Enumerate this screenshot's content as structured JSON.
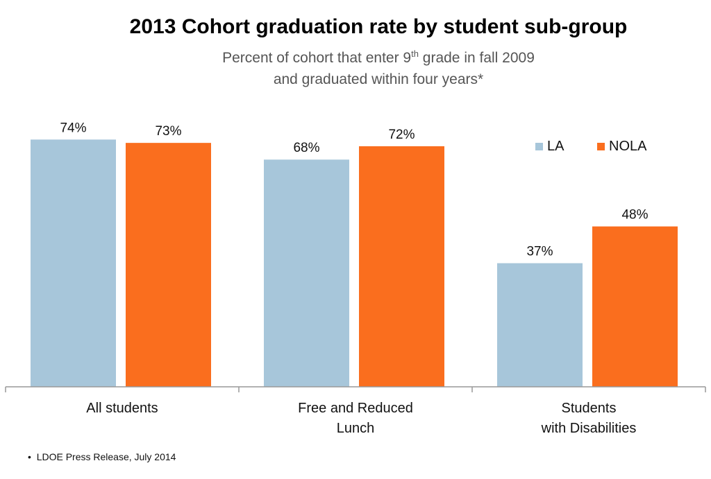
{
  "header": {
    "title": "2013 Cohort graduation rate by student sub-group",
    "subtitle_pre": "Percent of cohort that enter 9",
    "subtitle_sup": "th",
    "subtitle_post": " grade in fall 2009",
    "subtitle_line2": "and graduated within four years*"
  },
  "footnote": "LDOE Press Release, July 2014",
  "colors": {
    "LA": "#a7c6da",
    "NOLA": "#fa6e1e"
  },
  "chart_data": {
    "type": "bar",
    "title": "2013 Cohort graduation rate by student sub-group",
    "subtitle": "Percent of cohort that enter 9th grade in fall 2009 and graduated within four years*",
    "categories": [
      "All students",
      "Free and Reduced\nLunch",
      "Students\nwith Disabilities"
    ],
    "series": [
      {
        "name": "LA",
        "values": [
          74,
          68,
          37
        ],
        "labels": [
          "74%",
          "68%",
          "37%"
        ]
      },
      {
        "name": "NOLA",
        "values": [
          73,
          72,
          48
        ],
        "labels": [
          "73%",
          "72%",
          "48%"
        ]
      }
    ],
    "ylim": [
      0,
      100
    ],
    "legend": "top-right",
    "grid": false
  }
}
